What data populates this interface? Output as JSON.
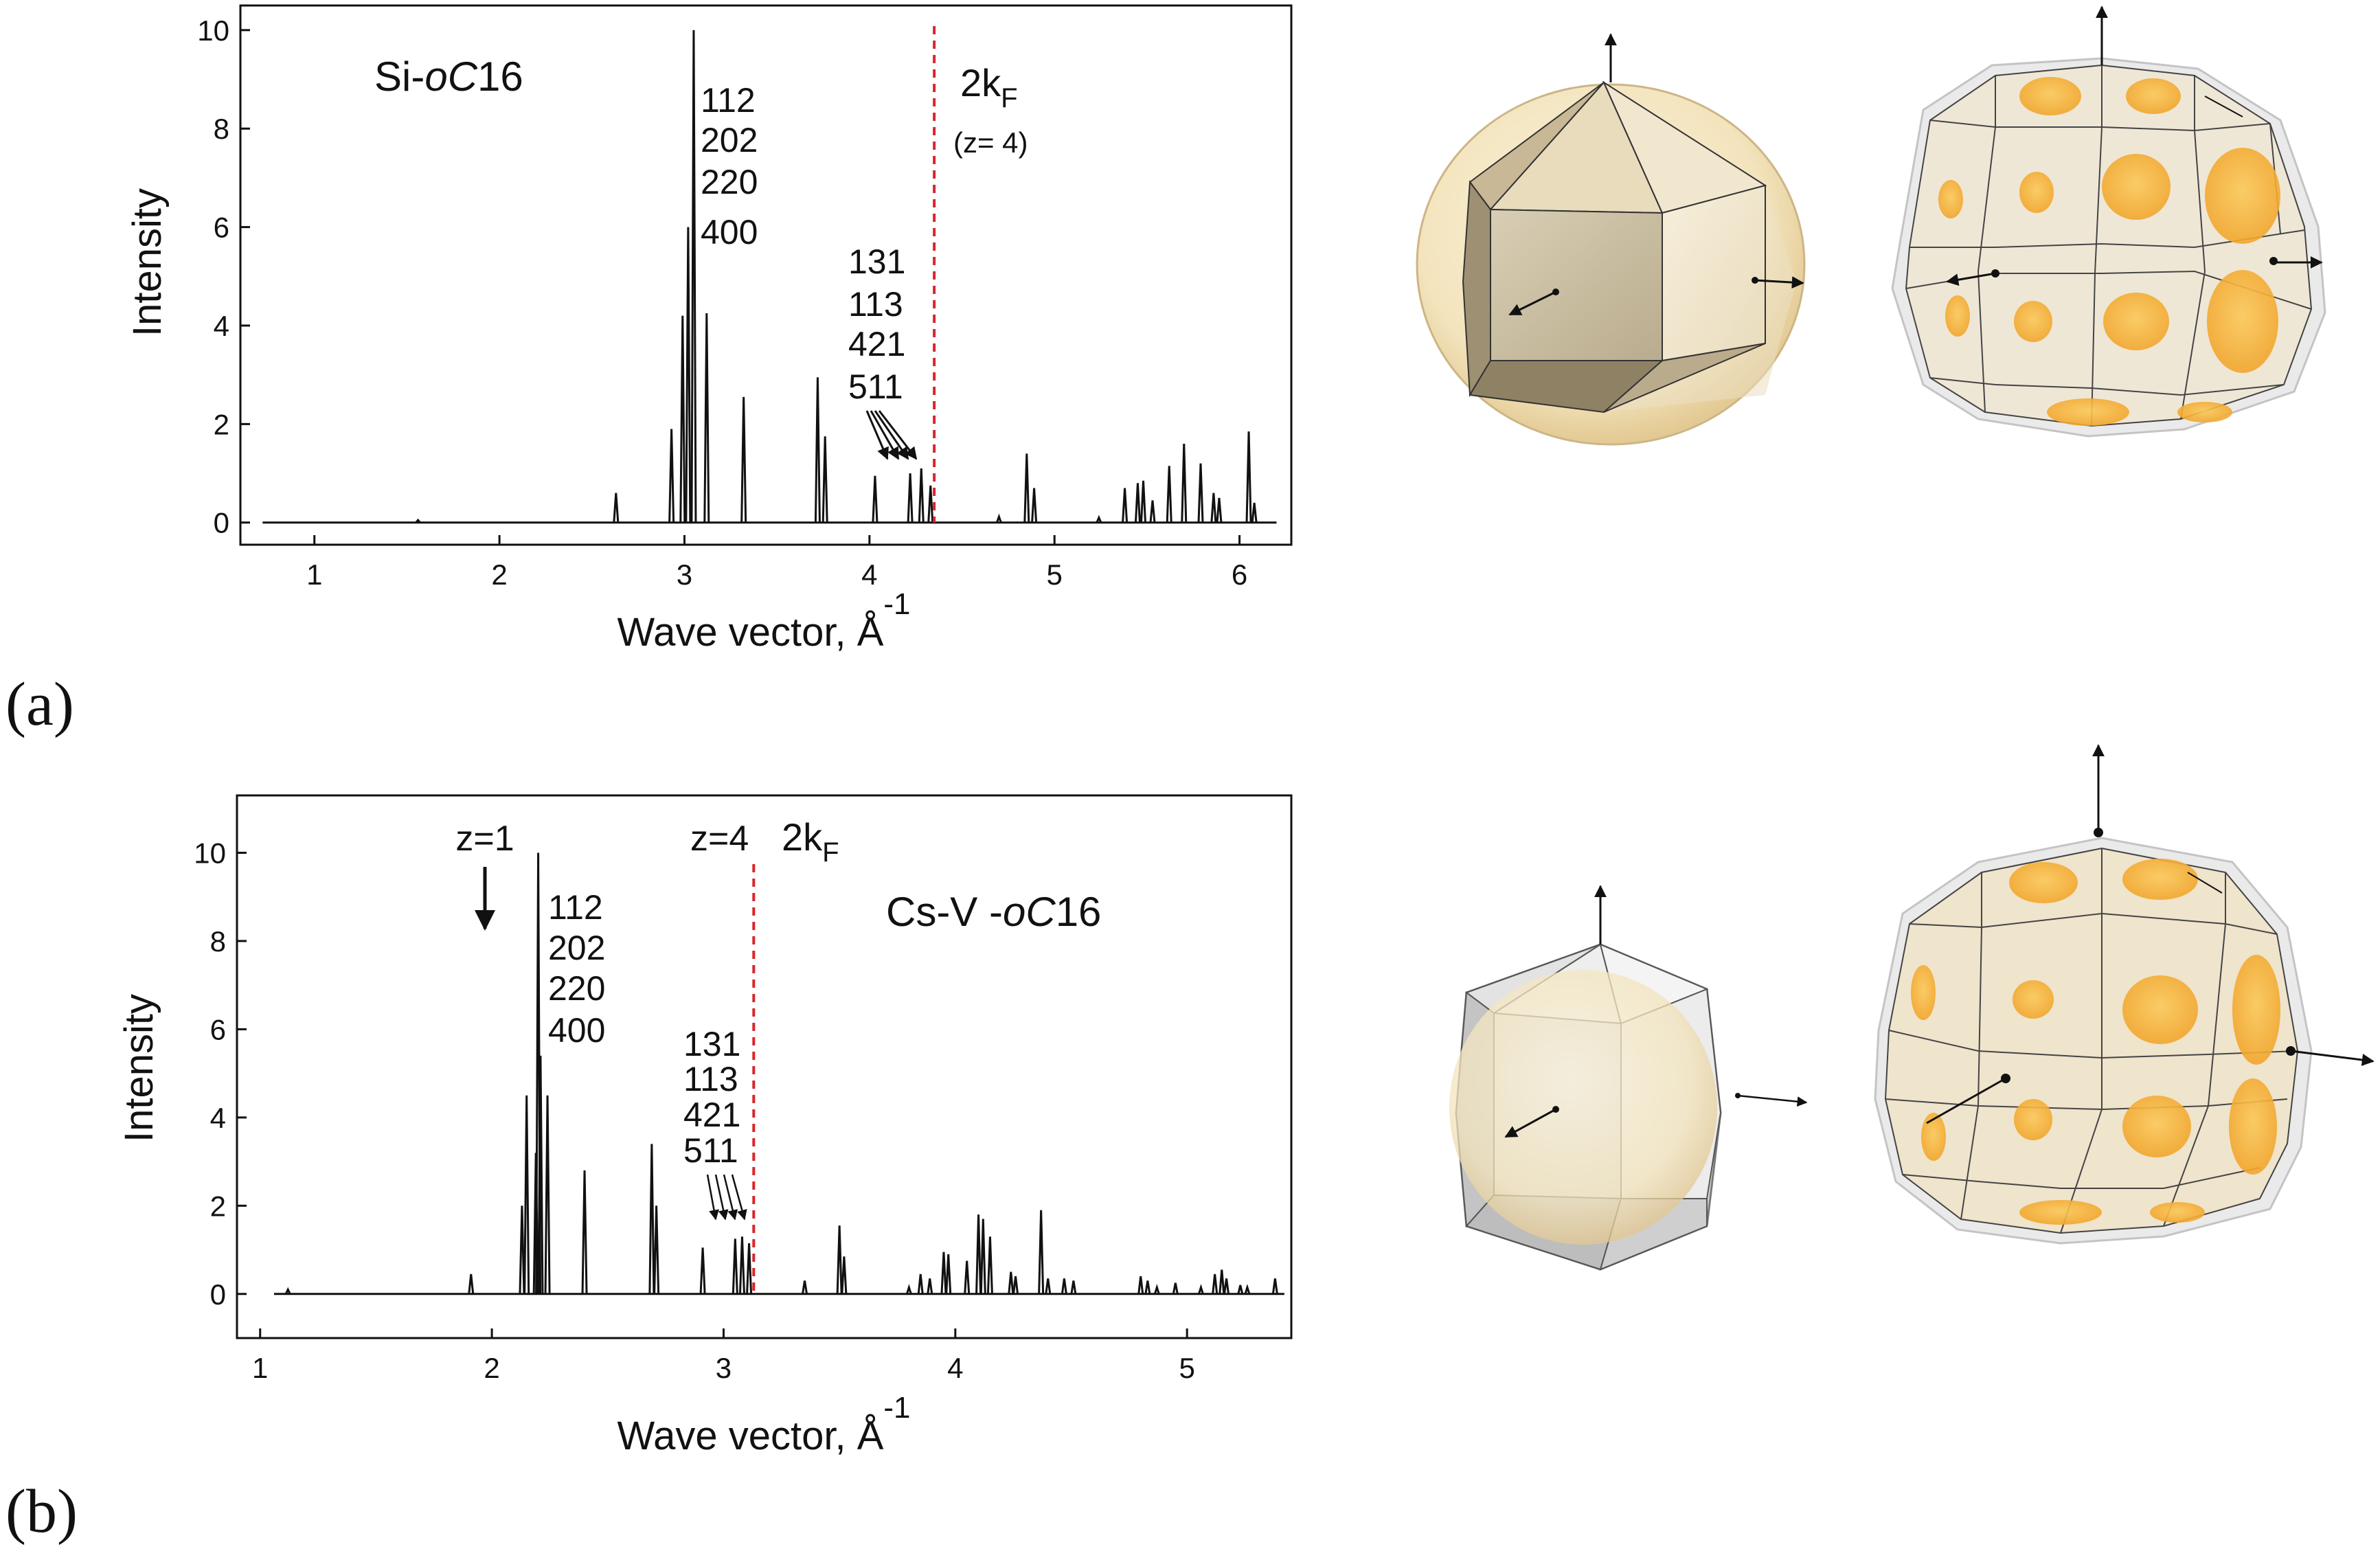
{
  "chart_data": [
    {
      "type": "line",
      "panel_label": "(a)",
      "title": "Si-oC16",
      "title_parts": [
        "Si-",
        "oC",
        "16"
      ],
      "xlabel": "Wave vector, Å",
      "xlabel_sup": "-1",
      "ylabel": "Intensity",
      "xlim": [
        0.6,
        6.28
      ],
      "ylim": [
        -0.45,
        10.5
      ],
      "xticks": [
        1,
        2,
        3,
        4,
        5,
        6
      ],
      "yticks": [
        0,
        2,
        4,
        6,
        8,
        10
      ],
      "x_start": 0.72,
      "x_end": 6.2,
      "peaks": [
        {
          "x": 1.56,
          "y": 0.05
        },
        {
          "x": 2.63,
          "y": 0.6
        },
        {
          "x": 2.93,
          "y": 1.9
        },
        {
          "x": 2.99,
          "y": 4.2
        },
        {
          "x": 3.02,
          "y": 6.0
        },
        {
          "x": 3.05,
          "y": 10.0
        },
        {
          "x": 3.12,
          "y": 4.25
        },
        {
          "x": 3.32,
          "y": 2.55
        },
        {
          "x": 3.72,
          "y": 2.95
        },
        {
          "x": 3.76,
          "y": 1.75
        },
        {
          "x": 4.03,
          "y": 0.95
        },
        {
          "x": 4.22,
          "y": 1.0
        },
        {
          "x": 4.28,
          "y": 1.1
        },
        {
          "x": 4.33,
          "y": 0.75
        },
        {
          "x": 4.7,
          "y": 0.12
        },
        {
          "x": 4.85,
          "y": 1.4
        },
        {
          "x": 4.89,
          "y": 0.7
        },
        {
          "x": 5.24,
          "y": 0.1
        },
        {
          "x": 5.38,
          "y": 0.7
        },
        {
          "x": 5.45,
          "y": 0.8
        },
        {
          "x": 5.48,
          "y": 0.85
        },
        {
          "x": 5.53,
          "y": 0.45
        },
        {
          "x": 5.62,
          "y": 1.15
        },
        {
          "x": 5.7,
          "y": 1.6
        },
        {
          "x": 5.79,
          "y": 1.2
        },
        {
          "x": 5.86,
          "y": 0.6
        },
        {
          "x": 5.89,
          "y": 0.5
        },
        {
          "x": 6.05,
          "y": 1.85
        },
        {
          "x": 6.08,
          "y": 0.4
        }
      ],
      "reflection_group_1": [
        "112",
        "202",
        "220",
        "400"
      ],
      "reflection_group_2": [
        "131",
        "113",
        "421",
        "511"
      ],
      "kf_marker": {
        "x": 4.35,
        "label": "2k",
        "sub": "F",
        "note": "(z= 4)",
        "color": "#d9262b"
      }
    },
    {
      "type": "line",
      "panel_label": "(b)",
      "title": "Cs-V -oC16",
      "title_parts": [
        "Cs-V -",
        "oC",
        "16"
      ],
      "xlabel": "Wave vector, Å",
      "xlabel_sup": "-1",
      "ylabel": "Intensity",
      "xlim": [
        0.9,
        5.45
      ],
      "ylim": [
        -1.0,
        11.3
      ],
      "xticks": [
        1,
        2,
        3,
        4,
        5
      ],
      "yticks": [
        0,
        2,
        4,
        6,
        8,
        10
      ],
      "x_start": 1.06,
      "x_end": 5.42,
      "peaks": [
        {
          "x": 1.12,
          "y": 0.1
        },
        {
          "x": 1.91,
          "y": 0.45
        },
        {
          "x": 2.13,
          "y": 2.0
        },
        {
          "x": 2.15,
          "y": 4.5
        },
        {
          "x": 2.19,
          "y": 3.2
        },
        {
          "x": 2.2,
          "y": 10.0
        },
        {
          "x": 2.21,
          "y": 5.4
        },
        {
          "x": 2.24,
          "y": 4.5
        },
        {
          "x": 2.4,
          "y": 2.8
        },
        {
          "x": 2.69,
          "y": 3.4
        },
        {
          "x": 2.71,
          "y": 2.0
        },
        {
          "x": 2.91,
          "y": 1.05
        },
        {
          "x": 3.05,
          "y": 1.25
        },
        {
          "x": 3.08,
          "y": 1.3
        },
        {
          "x": 3.11,
          "y": 1.15
        },
        {
          "x": 3.35,
          "y": 0.3
        },
        {
          "x": 3.5,
          "y": 1.55
        },
        {
          "x": 3.52,
          "y": 0.85
        },
        {
          "x": 3.8,
          "y": 0.15
        },
        {
          "x": 3.85,
          "y": 0.45
        },
        {
          "x": 3.89,
          "y": 0.35
        },
        {
          "x": 3.95,
          "y": 0.95
        },
        {
          "x": 3.97,
          "y": 0.9
        },
        {
          "x": 4.05,
          "y": 0.75
        },
        {
          "x": 4.1,
          "y": 1.8
        },
        {
          "x": 4.12,
          "y": 1.7
        },
        {
          "x": 4.15,
          "y": 1.3
        },
        {
          "x": 4.24,
          "y": 0.5
        },
        {
          "x": 4.26,
          "y": 0.4
        },
        {
          "x": 4.37,
          "y": 1.9
        },
        {
          "x": 4.4,
          "y": 0.35
        },
        {
          "x": 4.47,
          "y": 0.35
        },
        {
          "x": 4.51,
          "y": 0.3
        },
        {
          "x": 4.8,
          "y": 0.4
        },
        {
          "x": 4.83,
          "y": 0.3
        },
        {
          "x": 4.87,
          "y": 0.15
        },
        {
          "x": 4.95,
          "y": 0.25
        },
        {
          "x": 5.06,
          "y": 0.15
        },
        {
          "x": 5.12,
          "y": 0.45
        },
        {
          "x": 5.15,
          "y": 0.55
        },
        {
          "x": 5.17,
          "y": 0.35
        },
        {
          "x": 5.23,
          "y": 0.2
        },
        {
          "x": 5.26,
          "y": 0.15
        },
        {
          "x": 5.38,
          "y": 0.35
        }
      ],
      "reflection_group_1": [
        "112",
        "202",
        "220",
        "400"
      ],
      "reflection_group_2": [
        "131",
        "113",
        "421",
        "511"
      ],
      "kf_marker": {
        "x": 3.13,
        "label": "2k",
        "sub": "F",
        "note": "z=4",
        "color": "#d9262b"
      },
      "z1_marker": {
        "x": 1.99,
        "label": "z=1"
      }
    }
  ],
  "illustrations": [
    {
      "name": "brillouin-zone-small-a",
      "description": "cuboctahedral Brillouin zone inside a Fermi sphere"
    },
    {
      "name": "brillouin-zone-large-a",
      "description": "larger Brillouin zone with Fermi sphere contact patches"
    },
    {
      "name": "brillouin-zone-small-b",
      "description": "cuboctahedral Brillouin zone with inscribed Fermi sphere"
    },
    {
      "name": "brillouin-zone-large-b",
      "description": "larger Brillouin zone with Fermi sphere contact patches"
    }
  ],
  "colors": {
    "sphere": "#f2e3c0",
    "patch": "#f7b13a",
    "kf_line": "#d9262b",
    "frame": "#d8d8d8"
  }
}
